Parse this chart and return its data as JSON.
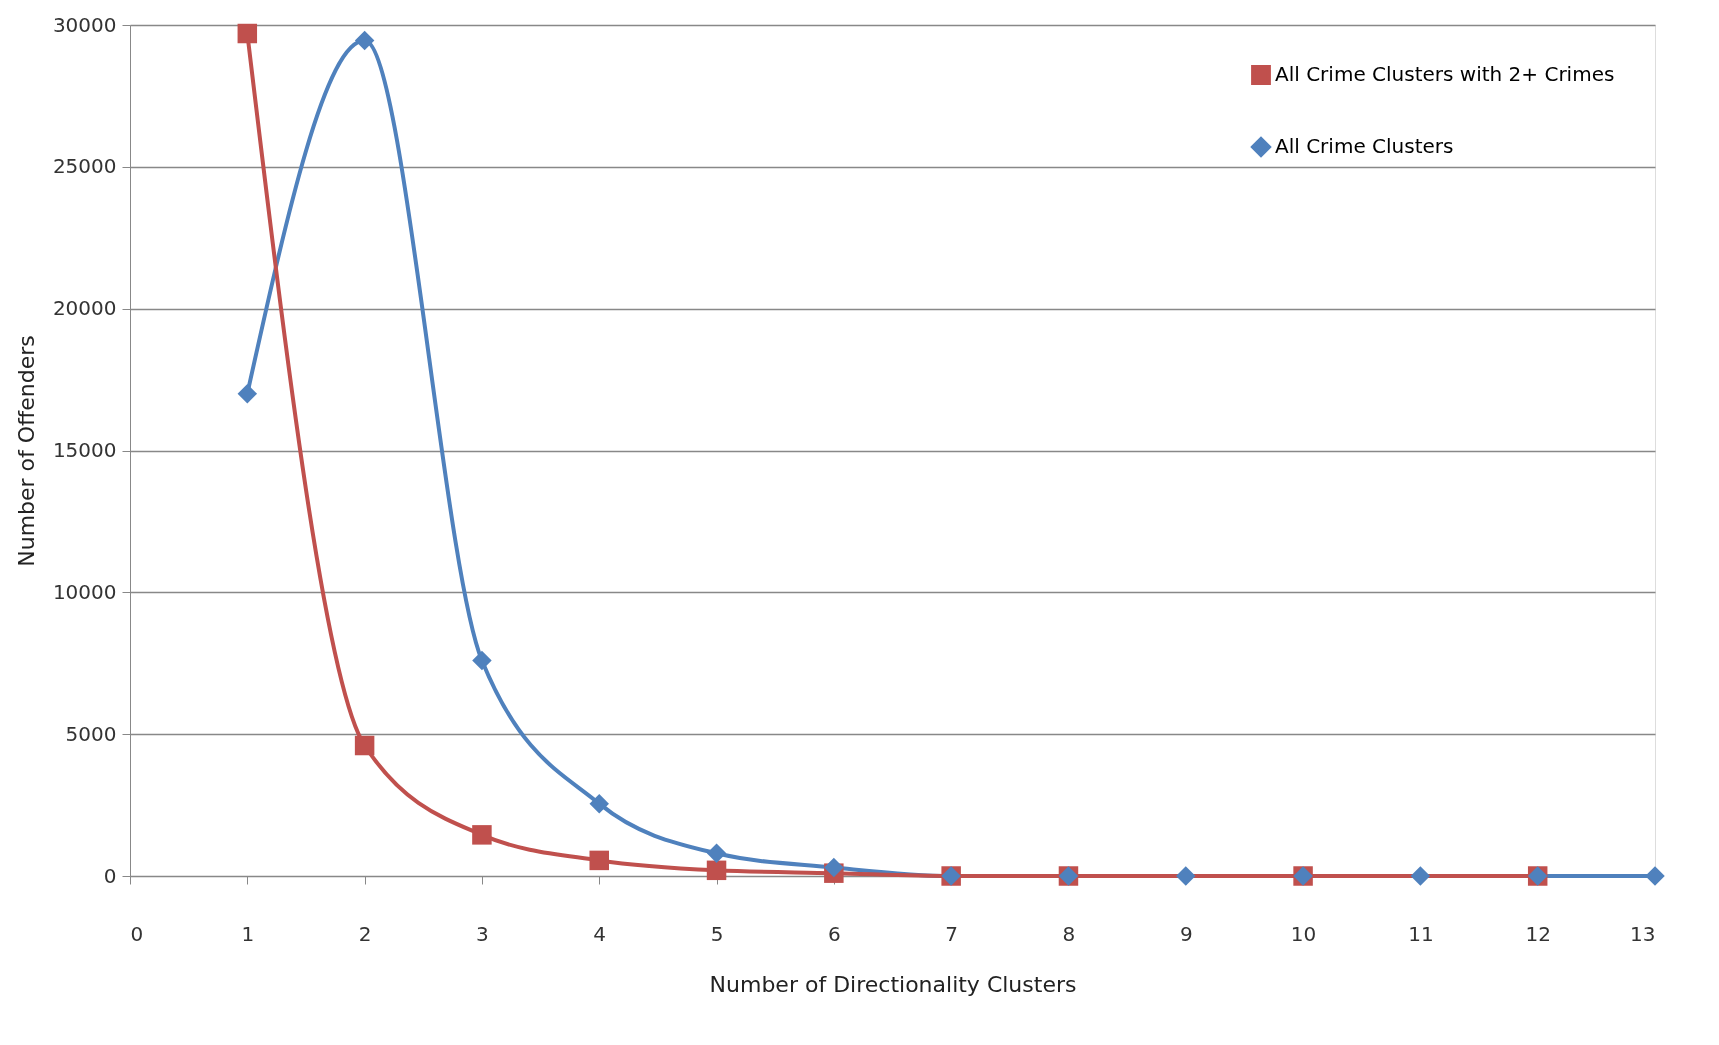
{
  "chart_data": {
    "type": "line",
    "xlabel": "Number of Directionality Clusters",
    "ylabel": "Number of Offenders",
    "xlim": [
      0,
      13
    ],
    "xticks": [
      0,
      1,
      2,
      3,
      4,
      5,
      6,
      7,
      8,
      9,
      10,
      11,
      12,
      13
    ],
    "ylim": [
      0,
      30000
    ],
    "yticks": [
      0,
      5000,
      10000,
      15000,
      20000,
      25000,
      30000
    ],
    "grid": "y",
    "legend": "top right",
    "line_style": "solid",
    "series": [
      {
        "name": "All Crime Clusters with 2+ Crimes",
        "color": "#c0504d",
        "marker": "square",
        "x": [
          1,
          2,
          3,
          4,
          5,
          6,
          7,
          8,
          10,
          12
        ],
        "values": [
          29700,
          4600,
          1450,
          550,
          200,
          100,
          0,
          0,
          0,
          0
        ]
      },
      {
        "name": "All Crime Clusters",
        "color": "#4f81bd",
        "marker": "diamond",
        "x": [
          1,
          2,
          3,
          4,
          5,
          6,
          7,
          8,
          9,
          10,
          11,
          12,
          13
        ],
        "values": [
          17000,
          29450,
          7600,
          2550,
          800,
          300,
          0,
          0,
          0,
          0,
          0,
          0,
          0
        ]
      }
    ]
  }
}
